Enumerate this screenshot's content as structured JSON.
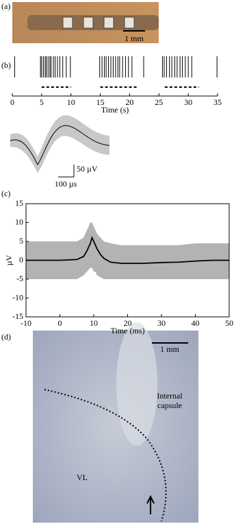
{
  "panel_a": {
    "label": "(a)",
    "scale_bar": "1 mm"
  },
  "chart_data": [
    {
      "type": "raster",
      "label": "(b)",
      "x_label": "Time (s)",
      "xlim": [
        0,
        35
      ],
      "xticks": [
        0,
        5,
        10,
        15,
        20,
        25,
        30,
        35
      ],
      "color": "#000",
      "values": [
        0.4,
        4.8,
        5.0,
        5.3,
        5.6,
        5.8,
        6.1,
        6.4,
        6.6,
        7.0,
        7.3,
        7.7,
        8.1,
        8.6,
        9.2,
        9.9,
        14.9,
        15.3,
        15.7,
        16.0,
        16.4,
        16.8,
        17.2,
        17.6,
        18.0,
        18.3,
        18.8,
        19.3,
        19.8,
        20.4,
        22.4,
        25.6,
        25.9,
        26.3,
        26.8,
        27.2,
        27.7,
        28.1,
        28.6,
        29.0,
        29.5,
        30.0,
        30.6,
        34.9
      ],
      "intervals": [
        [
          5,
          10
        ],
        [
          15,
          21.2
        ],
        [
          26,
          31.8
        ]
      ]
    },
    {
      "type": "line",
      "label": "(c)",
      "x_label": "Time (ms)",
      "y_label": "µV",
      "xlim": [
        -10,
        50
      ],
      "xticks": [
        -10,
        0,
        10,
        20,
        30,
        40,
        50
      ],
      "ylim": [
        -15,
        15
      ],
      "yticks": [
        -15,
        -10,
        -5,
        0,
        5,
        10,
        15
      ],
      "x": [
        -10,
        -5,
        0,
        5,
        7,
        8,
        9,
        9.5,
        10,
        10.5,
        11,
        12,
        13,
        15,
        18,
        20,
        25,
        30,
        35,
        40,
        45,
        50
      ],
      "band": {
        "color": "#b3b3b3",
        "upper": [
          5,
          5,
          5,
          5,
          6,
          8,
          10,
          10,
          9,
          8,
          7,
          6,
          5,
          4.5,
          4,
          4,
          4,
          4,
          4,
          4.5,
          4.5,
          4.5
        ],
        "lower": [
          -5,
          -5,
          -5,
          -5,
          -4,
          -3,
          -2,
          -2,
          -3,
          -3,
          -4,
          -4.5,
          -5,
          -5,
          -5,
          -5,
          -5,
          -5,
          -5,
          -5,
          -5,
          -5
        ]
      },
      "series": [
        {
          "color": "#000",
          "values": [
            0,
            0,
            0,
            0.2,
            1,
            2.5,
            4.5,
            6,
            5,
            4,
            3,
            1.5,
            0.5,
            -0.5,
            -0.8,
            -0.8,
            -0.8,
            -0.6,
            -0.5,
            -0.2,
            0,
            0
          ]
        }
      ]
    }
  ],
  "inset": {
    "scale_y": "50 µV",
    "scale_x": "100 µs"
  },
  "panel_d": {
    "label": "(d)",
    "scale_bar": "1 mm",
    "region_1": [
      "Internal",
      "capsule"
    ],
    "region_2": "VL"
  }
}
